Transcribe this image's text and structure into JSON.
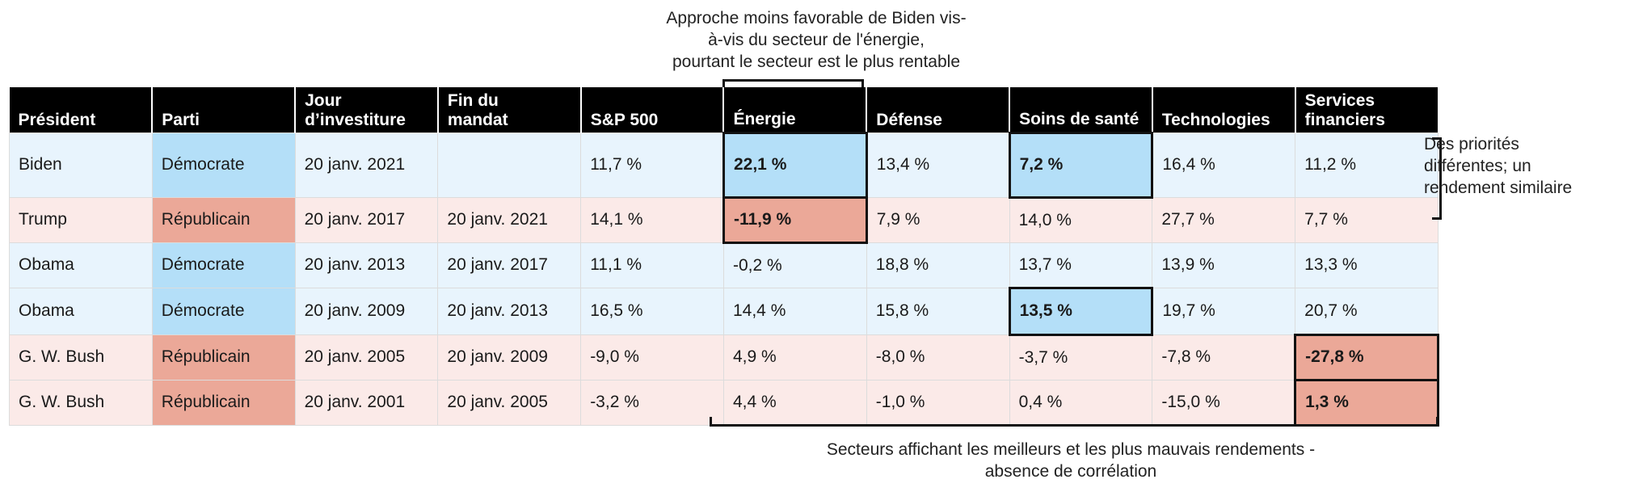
{
  "chart_data": {
    "type": "table",
    "columns": [
      "Président",
      "Parti",
      "Jour d’investiture",
      "Fin du mandat",
      "S&P 500",
      "Énergie",
      "Défense",
      "Soins de santé",
      "Technologies",
      "Services financiers"
    ],
    "rows": [
      {
        "president": "Biden",
        "party": "Démocrate",
        "start": "20 janv. 2021",
        "end": "",
        "values": [
          "11,7 %",
          "22,1 %",
          "13,4 %",
          "7,2 %",
          "16,4 %",
          "11,2 %"
        ]
      },
      {
        "president": "Trump",
        "party": "Républicain",
        "start": "20 janv. 2017",
        "end": "20 janv. 2021",
        "values": [
          "14,1 %",
          "-11,9 %",
          "7,9 %",
          "14,0 %",
          "27,7 %",
          "7,7 %"
        ]
      },
      {
        "president": "Obama",
        "party": "Démocrate",
        "start": "20 janv. 2013",
        "end": "20 janv. 2017",
        "values": [
          "11,1 %",
          "-0,2 %",
          "18,8 %",
          "13,7 %",
          "13,9 %",
          "13,3 %"
        ]
      },
      {
        "president": "Obama",
        "party": "Démocrate",
        "start": "20 janv. 2009",
        "end": "20 janv. 2013",
        "values": [
          "16,5 %",
          "14,4 %",
          "15,8 %",
          "13,5 %",
          "19,7 %",
          "20,7 %"
        ]
      },
      {
        "president": "G. W. Bush",
        "party": "Républicain",
        "start": "20 janv. 2005",
        "end": "20 janv. 2009",
        "values": [
          "-9,0 %",
          "4,9 %",
          "-8,0 %",
          "-3,7 %",
          "-7,8 %",
          "-27,8 %"
        ]
      },
      {
        "president": "G. W. Bush",
        "party": "Républicain",
        "start": "20 janv. 2001",
        "end": "20 janv. 2005",
        "values": [
          "-3,2 %",
          "4,4 %",
          "-1,0 %",
          "0,4 %",
          "-15,0 %",
          "1,3 %"
        ]
      }
    ],
    "highlighted": [
      {
        "row": 0,
        "column": "Énergie"
      },
      {
        "row": 0,
        "column": "Soins de santé"
      },
      {
        "row": 1,
        "column": "Énergie"
      },
      {
        "row": 3,
        "column": "Soins de santé"
      },
      {
        "row": 4,
        "column": "Services financiers"
      },
      {
        "row": 5,
        "column": "Services financiers"
      }
    ],
    "annotations": {
      "top": [
        "Approche moins favorable de Biden vis-",
        "à-vis du secteur de l'énergie,",
        "pourtant le secteur est le plus rentable"
      ],
      "right": [
        "Des priorités",
        "différentes; un",
        "rendement similaire"
      ],
      "bottom": [
        "Secteurs affichant les meilleurs et les plus mauvais rendements -",
        "absence de corrélation"
      ]
    }
  },
  "colors": {
    "header_bg": "#000000",
    "democrat_row": "#e8f4fd",
    "democrat_party": "#b4dff8",
    "republican_row": "#fbeae8",
    "republican_party": "#eba898"
  }
}
